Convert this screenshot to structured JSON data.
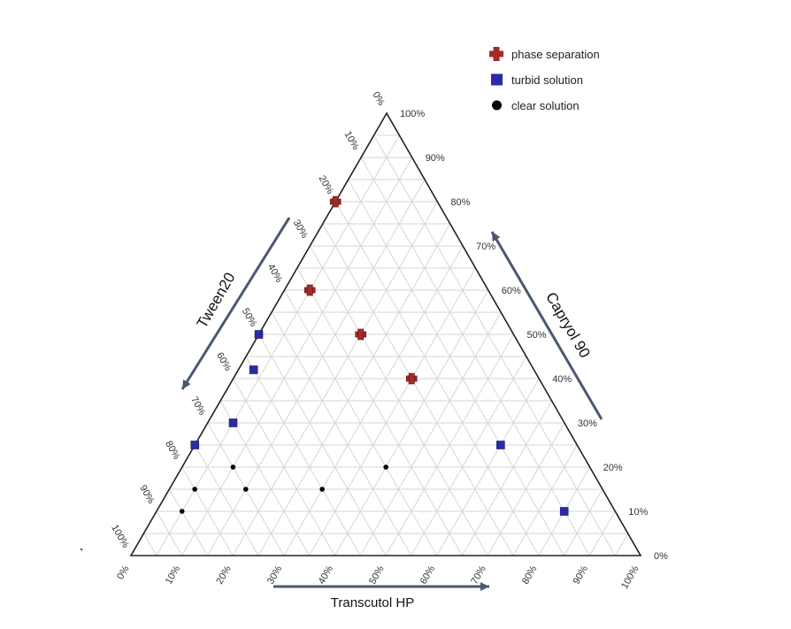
{
  "chart_data": {
    "type": "scatter",
    "subtype": "ternary",
    "title": "",
    "axes": {
      "top": {
        "label": "Capryol 90"
      },
      "left": {
        "label": "Tween20"
      },
      "bottom": {
        "label": "Transcutol HP"
      }
    },
    "ticks": {
      "top": [
        "0%",
        "10%",
        "20%",
        "30%",
        "40%",
        "50%",
        "60%",
        "70%",
        "80%",
        "90%",
        "100%"
      ],
      "left": [
        "0%",
        "10%",
        "20%",
        "30%",
        "40%",
        "50%",
        "60%",
        "70%",
        "80%",
        "90%",
        "100%"
      ],
      "bottom": [
        "0%",
        "10%",
        "20%",
        "30%",
        "40%",
        "50%",
        "60%",
        "70%",
        "80%",
        "90%",
        "100%"
      ]
    },
    "grid": true,
    "legend_position": "top-right",
    "series": [
      {
        "name": "phase separation",
        "color": "#a32a2a",
        "marker": "plus",
        "points": [
          {
            "top": 80,
            "left": 20,
            "bottom": 0
          },
          {
            "top": 60,
            "left": 35,
            "bottom": 5
          },
          {
            "top": 50,
            "left": 30,
            "bottom": 20
          },
          {
            "top": 40,
            "left": 25,
            "bottom": 35
          }
        ]
      },
      {
        "name": "turbid solution",
        "color": "#2b2ba8",
        "marker": "square",
        "points": [
          {
            "top": 50,
            "left": 50,
            "bottom": 0
          },
          {
            "top": 42,
            "left": 55,
            "bottom": 3
          },
          {
            "top": 30,
            "left": 65,
            "bottom": 5
          },
          {
            "top": 25,
            "left": 75,
            "bottom": 0
          },
          {
            "top": 25,
            "left": 15,
            "bottom": 60
          },
          {
            "top": 10,
            "left": 10,
            "bottom": 80
          }
        ]
      },
      {
        "name": "clear solution",
        "color": "#000000",
        "marker": "circle",
        "points": [
          {
            "top": 20,
            "left": 70,
            "bottom": 10
          },
          {
            "top": 20,
            "left": 40,
            "bottom": 40
          },
          {
            "top": 15,
            "left": 80,
            "bottom": 5
          },
          {
            "top": 15,
            "left": 70,
            "bottom": 15
          },
          {
            "top": 15,
            "left": 55,
            "bottom": 30
          },
          {
            "top": 10,
            "left": 85,
            "bottom": 5
          }
        ]
      }
    ]
  }
}
